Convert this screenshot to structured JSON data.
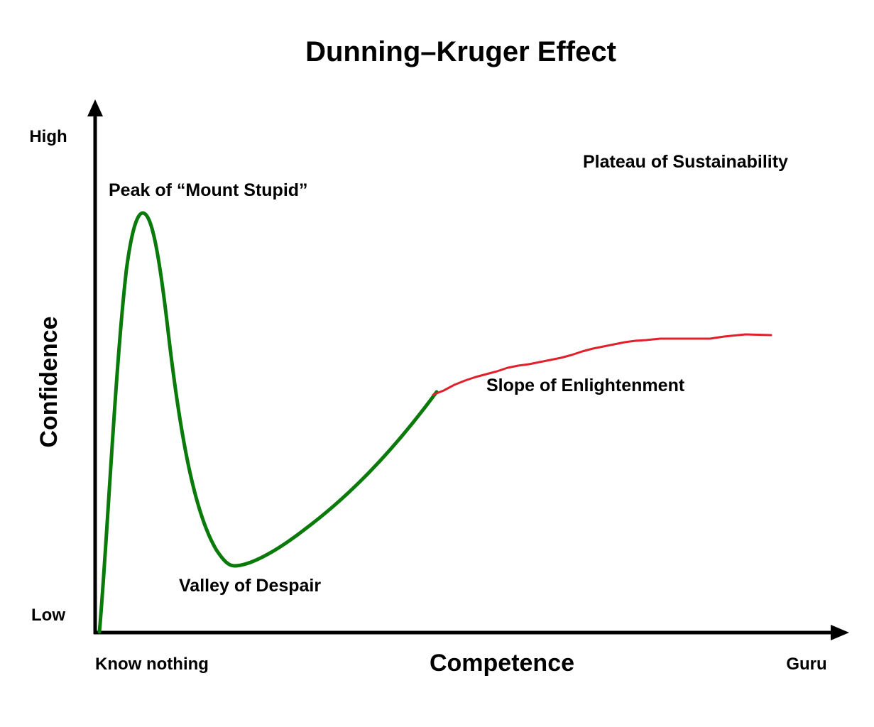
{
  "title": "Dunning–Kruger Effect",
  "y_axis": {
    "title": "Confidence",
    "high_label": "High",
    "low_label": "Low"
  },
  "x_axis": {
    "title": "Competence",
    "start_label": "Know nothing",
    "end_label": "Guru"
  },
  "stages": {
    "peak": "Peak of “Mount Stupid”",
    "valley": "Valley of Despair",
    "slope": "Slope of Enlightenment",
    "plateau": "Plateau of Sustainability"
  },
  "colors": {
    "axis": "#000000",
    "early_curve": "#0a7a0a",
    "late_curve": "#e0202a",
    "text": "#000000"
  }
}
